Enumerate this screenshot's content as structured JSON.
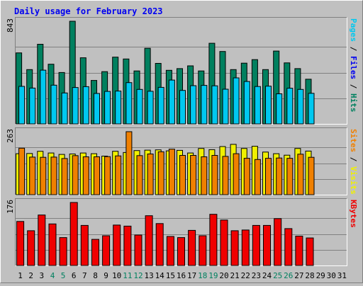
{
  "chart_data": {
    "type": "bar",
    "title": "Daily usage for February 2023",
    "days": [
      "1",
      "2",
      "3",
      "4",
      "5",
      "6",
      "7",
      "8",
      "9",
      "10",
      "11",
      "12",
      "13",
      "14",
      "15",
      "16",
      "17",
      "18",
      "19",
      "20",
      "21",
      "22",
      "23",
      "24",
      "25",
      "26",
      "27",
      "28",
      "29",
      "30",
      "31"
    ],
    "weekend_days": [
      "4",
      "5",
      "11",
      "12",
      "18",
      "19",
      "25",
      "26"
    ],
    "panels": [
      {
        "name": "hits-files-pages",
        "ymax_label": "843",
        "ymax": 843,
        "side_labels": [
          {
            "text": "Pages",
            "color": "#00C8F0"
          },
          {
            "text": " / ",
            "color": "#000000"
          },
          {
            "text": "Files",
            "color": "#0000F0"
          },
          {
            "text": " / ",
            "color": "#000000"
          },
          {
            "text": "Hits",
            "color": "#00805F"
          }
        ],
        "series": [
          {
            "name": "Hits",
            "color": "#00805F",
            "values": [
              583,
              446,
              654,
              490,
              422,
              843,
              543,
              357,
              429,
              548,
              533,
              435,
              621,
              497,
              440,
              454,
              477,
              435,
              662,
              595,
              446,
              499,
              528,
              446,
              598,
              501,
              454,
              367
            ]
          },
          {
            "name": "Pages",
            "color": "#00C8F0",
            "values": [
              308,
              294,
              441,
              318,
              254,
              299,
              306,
              250,
              267,
              270,
              339,
              283,
              268,
              300,
              360,
              275,
              314,
              316,
              313,
              285,
              378,
              348,
              307,
              310,
              247,
              293,
              283,
              251
            ]
          }
        ]
      },
      {
        "name": "visits-sites",
        "ymax_label": "263",
        "ymax": 263,
        "side_labels": [
          {
            "text": "Sites",
            "color": "#F08000"
          },
          {
            "text": " / ",
            "color": "#000000"
          },
          {
            "text": "Visits",
            "color": "#F0F000"
          }
        ],
        "series": [
          {
            "name": "Visits",
            "color": "#F0F000",
            "values": [
              171,
              172,
              181,
              174,
              168,
              170,
              174,
              171,
              161,
              181,
              176,
              184,
              186,
              187,
              183,
              185,
              174,
              193,
              188,
              201,
              210,
              193,
              202,
              178,
              171,
              165,
              193,
              182
            ]
          },
          {
            "name": "Sites",
            "color": "#F08000",
            "values": [
              194,
              157,
              156,
              157,
              151,
              163,
              158,
              158,
              159,
              162,
              263,
              163,
              170,
              179,
              190,
              164,
              164,
              158,
              164,
              160,
              171,
              152,
              147,
              152,
              153,
              152,
              169,
              156
            ]
          }
        ]
      },
      {
        "name": "kbytes",
        "ymax_label": "176",
        "ymax": 176,
        "side_labels": [
          {
            "text": "KBytes",
            "color": "#F00000"
          }
        ],
        "series": [
          {
            "name": "KBytes",
            "color": "#F00000",
            "values": [
              123,
              97,
              141,
              116,
              78,
              176,
              112,
              73,
              83,
              113,
              110,
              85,
              139,
              117,
              81,
              78,
              98,
              83,
              143,
              127,
              97,
              99,
              112,
              112,
              131,
              103,
              82,
              77
            ]
          }
        ]
      }
    ]
  }
}
